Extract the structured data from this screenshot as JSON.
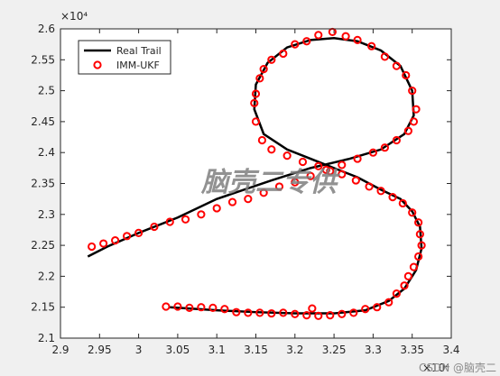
{
  "chart_data": {
    "type": "line",
    "x_exponent": "×10⁴",
    "y_exponent": "×10⁴",
    "xlim": [
      2.9,
      3.4
    ],
    "xticks": [
      2.9,
      2.95,
      3,
      3.05,
      3.1,
      3.15,
      3.2,
      3.25,
      3.3,
      3.35,
      3.4
    ],
    "ylim": [
      2.1,
      2.6
    ],
    "yticks": [
      2.1,
      2.15,
      2.2,
      2.25,
      2.3,
      2.35,
      2.4,
      2.45,
      2.5,
      2.55,
      2.6
    ],
    "legend": "northwest",
    "annotation": "脑壳二专供",
    "watermark": "CSDN @脑壳二",
    "series": [
      {
        "name": "Real Trail",
        "color": "#000000",
        "marker": "none",
        "x": [
          3.04,
          3.1,
          3.15,
          3.2,
          3.25,
          3.29,
          3.32,
          3.34,
          3.355,
          3.362,
          3.36,
          3.35,
          3.335,
          3.31,
          3.28,
          3.25,
          3.22,
          3.19,
          3.16,
          3.148,
          3.15,
          3.165,
          3.19,
          3.22,
          3.25,
          3.28,
          3.31,
          3.335,
          3.35,
          3.352,
          3.34,
          3.31,
          3.27,
          3.22,
          3.17,
          3.1,
          3.05,
          3.0,
          2.96,
          2.935
        ],
        "y": [
          2.15,
          2.145,
          2.142,
          2.14,
          2.14,
          2.145,
          2.16,
          2.18,
          2.21,
          2.245,
          2.28,
          2.305,
          2.325,
          2.34,
          2.36,
          2.375,
          2.39,
          2.405,
          2.43,
          2.47,
          2.51,
          2.545,
          2.57,
          2.582,
          2.585,
          2.58,
          2.565,
          2.54,
          2.5,
          2.46,
          2.43,
          2.405,
          2.39,
          2.375,
          2.355,
          2.325,
          2.295,
          2.27,
          2.248,
          2.232
        ]
      },
      {
        "name": "IMM-UKF",
        "color": "#ff0000",
        "marker": "o",
        "x": [
          3.035,
          3.05,
          3.065,
          3.08,
          3.095,
          3.11,
          3.125,
          3.14,
          3.155,
          3.17,
          3.185,
          3.2,
          3.215,
          3.222,
          3.23,
          3.245,
          3.26,
          3.275,
          3.29,
          3.305,
          3.32,
          3.33,
          3.34,
          3.345,
          3.352,
          3.358,
          3.362,
          3.36,
          3.358,
          3.35,
          3.338,
          3.325,
          3.31,
          3.295,
          3.278,
          3.26,
          3.245,
          3.23,
          3.21,
          3.19,
          3.17,
          3.158,
          3.15,
          3.148,
          3.15,
          3.155,
          3.16,
          3.17,
          3.185,
          3.2,
          3.215,
          3.23,
          3.248,
          3.265,
          3.28,
          3.298,
          3.315,
          3.33,
          3.342,
          3.35,
          3.355,
          3.352,
          3.345,
          3.33,
          3.315,
          3.3,
          3.28,
          3.26,
          3.24,
          3.22,
          3.2,
          3.18,
          3.16,
          3.14,
          3.12,
          3.1,
          3.08,
          3.06,
          3.04,
          3.02,
          3.0,
          2.985,
          2.97,
          2.955,
          2.94
        ],
        "y": [
          2.151,
          2.151,
          2.149,
          2.15,
          2.149,
          2.147,
          2.142,
          2.141,
          2.141,
          2.14,
          2.141,
          2.139,
          2.137,
          2.148,
          2.136,
          2.137,
          2.139,
          2.141,
          2.147,
          2.15,
          2.158,
          2.172,
          2.185,
          2.2,
          2.215,
          2.232,
          2.25,
          2.268,
          2.287,
          2.303,
          2.318,
          2.328,
          2.338,
          2.345,
          2.355,
          2.365,
          2.37,
          2.378,
          2.385,
          2.395,
          2.405,
          2.42,
          2.45,
          2.48,
          2.495,
          2.52,
          2.535,
          2.55,
          2.56,
          2.575,
          2.58,
          2.59,
          2.595,
          2.588,
          2.582,
          2.572,
          2.555,
          2.54,
          2.525,
          2.5,
          2.47,
          2.45,
          2.435,
          2.42,
          2.408,
          2.4,
          2.39,
          2.38,
          2.372,
          2.362,
          2.352,
          2.345,
          2.335,
          2.325,
          2.32,
          2.31,
          2.3,
          2.292,
          2.288,
          2.28,
          2.27,
          2.265,
          2.258,
          2.253,
          2.248
        ]
      }
    ]
  }
}
